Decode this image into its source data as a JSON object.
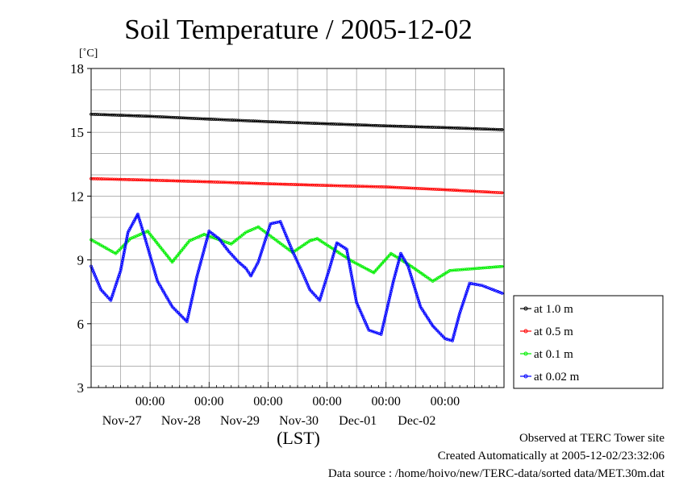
{
  "chart_data": {
    "type": "line",
    "title": "Soil Temperature / 2005-12-02",
    "ylabel": "[˚C]",
    "xlabel": "(LST)",
    "ylim": [
      3,
      18
    ],
    "yticks": [
      3,
      6,
      9,
      12,
      15,
      18
    ],
    "xlim": [
      "2005-11-26T00:00",
      "2005-12-03T00:00"
    ],
    "x_time_label": "00:00",
    "x_days": [
      "Nov-27",
      "Nov-28",
      "Nov-29",
      "Nov-30",
      "Dec-01",
      "Dec-02"
    ],
    "grid": true,
    "legend_position": "right",
    "series": [
      {
        "name": "at 1.0 m",
        "color": "#000000",
        "points": [
          [
            "2005-11-26T00:00",
            15.85
          ],
          [
            "2005-11-27T00:00",
            15.75
          ],
          [
            "2005-11-28T00:00",
            15.62
          ],
          [
            "2005-11-29T00:00",
            15.5
          ],
          [
            "2005-11-30T00:00",
            15.4
          ],
          [
            "2005-12-01T00:00",
            15.3
          ],
          [
            "2005-12-02T00:00",
            15.22
          ],
          [
            "2005-12-03T00:00",
            15.12
          ]
        ]
      },
      {
        "name": "at 0.5 m",
        "color": "#ff0000",
        "points": [
          [
            "2005-11-26T00:00",
            12.82
          ],
          [
            "2005-11-27T00:00",
            12.75
          ],
          [
            "2005-11-28T00:00",
            12.67
          ],
          [
            "2005-11-29T00:00",
            12.58
          ],
          [
            "2005-11-30T00:00",
            12.5
          ],
          [
            "2005-12-01T00:00",
            12.43
          ],
          [
            "2005-12-02T00:00",
            12.3
          ],
          [
            "2005-12-03T00:00",
            12.15
          ]
        ]
      },
      {
        "name": "at 0.1 m",
        "color": "#00ee00",
        "points": [
          [
            "2005-11-26T00:00",
            9.95
          ],
          [
            "2005-11-26T10:00",
            9.3
          ],
          [
            "2005-11-26T16:00",
            10.0
          ],
          [
            "2005-11-26T23:00",
            10.35
          ],
          [
            "2005-11-27T09:00",
            8.9
          ],
          [
            "2005-11-27T16:00",
            9.9
          ],
          [
            "2005-11-27T22:00",
            10.2
          ],
          [
            "2005-11-28T09:00",
            9.75
          ],
          [
            "2005-11-28T15:00",
            10.3
          ],
          [
            "2005-11-28T20:00",
            10.55
          ],
          [
            "2005-11-29T10:00",
            9.35
          ],
          [
            "2005-11-29T17:00",
            9.9
          ],
          [
            "2005-11-29T20:00",
            10.0
          ],
          [
            "2005-11-30T10:00",
            8.95
          ],
          [
            "2005-11-30T19:00",
            8.4
          ],
          [
            "2005-12-01T02:00",
            9.3
          ],
          [
            "2005-12-01T09:00",
            8.8
          ],
          [
            "2005-12-01T19:00",
            8.0
          ],
          [
            "2005-12-02T02:00",
            8.5
          ],
          [
            "2005-12-03T00:00",
            8.7
          ]
        ]
      },
      {
        "name": "at 0.02 m",
        "color": "#0000ff",
        "points": [
          [
            "2005-11-26T00:00",
            8.7
          ],
          [
            "2005-11-26T04:00",
            7.6
          ],
          [
            "2005-11-26T08:00",
            7.1
          ],
          [
            "2005-11-26T12:00",
            8.5
          ],
          [
            "2005-11-26T15:00",
            10.3
          ],
          [
            "2005-11-26T19:00",
            11.15
          ],
          [
            "2005-11-26T22:00",
            10.0
          ],
          [
            "2005-11-27T03:00",
            8.0
          ],
          [
            "2005-11-27T09:00",
            6.8
          ],
          [
            "2005-11-27T15:00",
            6.1
          ],
          [
            "2005-11-27T19:00",
            8.2
          ],
          [
            "2005-11-28T00:00",
            10.35
          ],
          [
            "2005-11-28T04:00",
            10.0
          ],
          [
            "2005-11-28T08:00",
            9.4
          ],
          [
            "2005-11-28T12:00",
            8.9
          ],
          [
            "2005-11-28T15:00",
            8.6
          ],
          [
            "2005-11-28T17:00",
            8.25
          ],
          [
            "2005-11-28T20:00",
            8.9
          ],
          [
            "2005-11-29T01:00",
            10.7
          ],
          [
            "2005-11-29T05:00",
            10.8
          ],
          [
            "2005-11-29T10:00",
            9.4
          ],
          [
            "2005-11-29T14:00",
            8.4
          ],
          [
            "2005-11-29T17:00",
            7.6
          ],
          [
            "2005-11-29T21:00",
            7.1
          ],
          [
            "2005-11-30T01:00",
            8.6
          ],
          [
            "2005-11-30T04:00",
            9.8
          ],
          [
            "2005-11-30T08:00",
            9.5
          ],
          [
            "2005-11-30T12:00",
            7.0
          ],
          [
            "2005-11-30T17:00",
            5.7
          ],
          [
            "2005-11-30T22:00",
            5.5
          ],
          [
            "2005-12-01T03:00",
            8.0
          ],
          [
            "2005-12-01T06:00",
            9.3
          ],
          [
            "2005-12-01T09:00",
            8.7
          ],
          [
            "2005-12-01T14:00",
            6.8
          ],
          [
            "2005-12-01T19:00",
            5.9
          ],
          [
            "2005-12-02T00:00",
            5.3
          ],
          [
            "2005-12-02T03:00",
            5.2
          ],
          [
            "2005-12-02T06:00",
            6.5
          ],
          [
            "2005-12-02T10:00",
            7.9
          ],
          [
            "2005-12-02T15:00",
            7.8
          ],
          [
            "2005-12-03T00:00",
            7.4
          ]
        ]
      }
    ]
  },
  "footer": {
    "observed": "Observed at TERC Tower site",
    "created": "Created Automatically at 2005-12-02/23:32:06",
    "source": "Data source : /home/hoivo/new/TERC-data/sorted  data/MET.30m.dat"
  }
}
